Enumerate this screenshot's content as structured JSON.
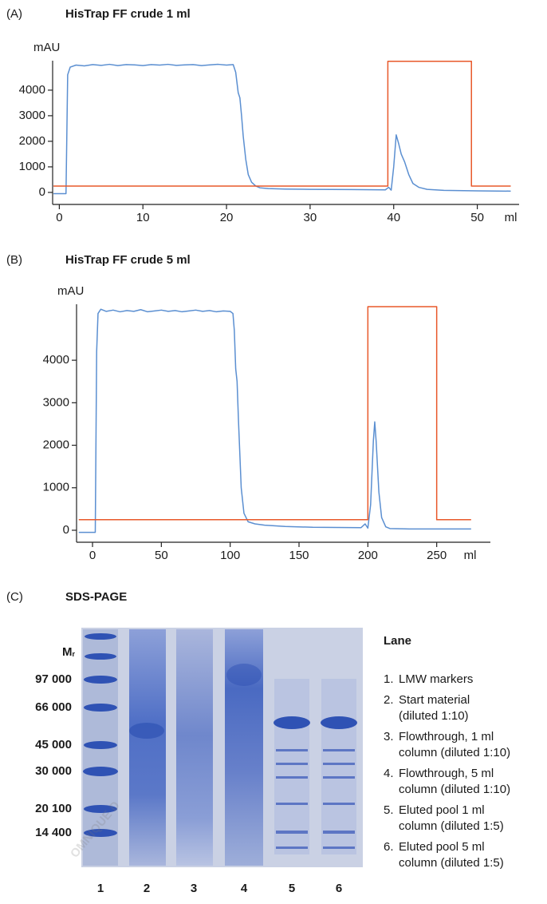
{
  "chart_data": [
    {
      "type": "line",
      "panel_label": "(A)",
      "title": "HisTrap FF crude 1 ml",
      "y_label": "mAU",
      "x_label": "ml",
      "xlim": [
        -0.8,
        55
      ],
      "ylim": [
        -470,
        5340
      ],
      "xticks": [
        0,
        10,
        20,
        30,
        40,
        50
      ],
      "yticks": [
        0,
        1000,
        2000,
        3000,
        4000
      ],
      "series": [
        {
          "color": "#5b8fd1",
          "x": [
            -0.7,
            0.8,
            1.0,
            1.3,
            2,
            3,
            4,
            5,
            6,
            7,
            8,
            9,
            10,
            11,
            12,
            13,
            14,
            15,
            16,
            17,
            18,
            19,
            20,
            20.8,
            21.1,
            21.4,
            21.6,
            21.8,
            22,
            22.3,
            22.6,
            23,
            23.5,
            24,
            25,
            27,
            30,
            35,
            39,
            39.4,
            39.7,
            40,
            40.3,
            40.6,
            40.9,
            41.3,
            41.8,
            42.3,
            43,
            44,
            46,
            50,
            54
          ],
          "values": [
            -50,
            -50,
            4600,
            4900,
            4980,
            4950,
            5000,
            4970,
            5010,
            4960,
            5000,
            4990,
            4960,
            5000,
            4980,
            5010,
            4970,
            4990,
            5000,
            4960,
            4990,
            5010,
            4980,
            5000,
            4700,
            3900,
            3700,
            3000,
            2200,
            1300,
            700,
            400,
            250,
            180,
            150,
            130,
            120,
            110,
            100,
            200,
            90,
            1000,
            2250,
            1900,
            1500,
            1200,
            700,
            350,
            200,
            120,
            80,
            60,
            50
          ]
        },
        {
          "color": "#e8582a",
          "x": [
            -0.7,
            39.3,
            39.3,
            49.3,
            49.3,
            54
          ],
          "values": [
            250,
            250,
            5130,
            5130,
            250,
            250
          ]
        }
      ]
    },
    {
      "type": "line",
      "panel_label": "(B)",
      "title": "HisTrap FF crude 5 ml",
      "y_label": "mAU",
      "x_label": "ml",
      "xlim": [
        -11.6,
        289
      ],
      "ylim": [
        -282,
        5430
      ],
      "xticks": [
        0,
        50,
        100,
        150,
        200,
        250
      ],
      "yticks": [
        0,
        1000,
        2000,
        3000,
        4000
      ],
      "series": [
        {
          "color": "#5b8fd1",
          "x": [
            -10,
            2,
            3,
            4,
            6,
            10,
            15,
            20,
            25,
            30,
            35,
            40,
            45,
            50,
            55,
            60,
            65,
            70,
            75,
            80,
            85,
            90,
            95,
            100,
            102,
            103,
            104,
            105,
            106,
            108,
            110,
            113,
            118,
            125,
            140,
            160,
            195,
            198,
            200,
            202,
            204,
            205,
            206,
            208,
            210,
            213,
            216,
            230,
            275
          ],
          "values": [
            -50,
            -50,
            4200,
            5100,
            5200,
            5150,
            5180,
            5140,
            5170,
            5150,
            5190,
            5140,
            5160,
            5180,
            5150,
            5170,
            5140,
            5160,
            5180,
            5150,
            5170,
            5140,
            5160,
            5150,
            5100,
            4700,
            3800,
            3500,
            2600,
            1000,
            400,
            200,
            150,
            120,
            90,
            70,
            60,
            150,
            50,
            600,
            2100,
            2550,
            2100,
            900,
            300,
            80,
            40,
            30,
            30
          ]
        },
        {
          "color": "#e8582a",
          "x": [
            -10,
            200,
            200,
            250,
            250,
            275
          ],
          "values": [
            250,
            250,
            5260,
            5260,
            250,
            250
          ]
        }
      ]
    }
  ],
  "gel": {
    "panel_label": "(C)",
    "title": "SDS-PAGE",
    "mr_label": {
      "main": "M",
      "sub": "r"
    },
    "markers": [
      "97 000",
      "66 000",
      "45 000",
      "30 000",
      "20 100",
      "14 400"
    ],
    "lanes": [
      "1",
      "2",
      "3",
      "4",
      "5",
      "6"
    ],
    "legend_title": "Lane",
    "legend_items": [
      {
        "number": "1.",
        "lines": [
          "LMW markers"
        ]
      },
      {
        "number": "2.",
        "lines": [
          "Start material",
          "(diluted 1:10)"
        ]
      },
      {
        "number": "3.",
        "lines": [
          "Flowthrough, 1 ml",
          "column (diluted 1:10)"
        ]
      },
      {
        "number": "4.",
        "lines": [
          "Flowthrough, 5 ml",
          "column (diluted 1:10)"
        ]
      },
      {
        "number": "5.",
        "lines": [
          "Eluted pool 1 ml",
          "column (diluted 1:5)"
        ]
      },
      {
        "number": "6.",
        "lines": [
          "Eluted pool 5 ml",
          "column (diluted 1:5)"
        ]
      }
    ]
  },
  "watermark": "OMNIQUE D"
}
